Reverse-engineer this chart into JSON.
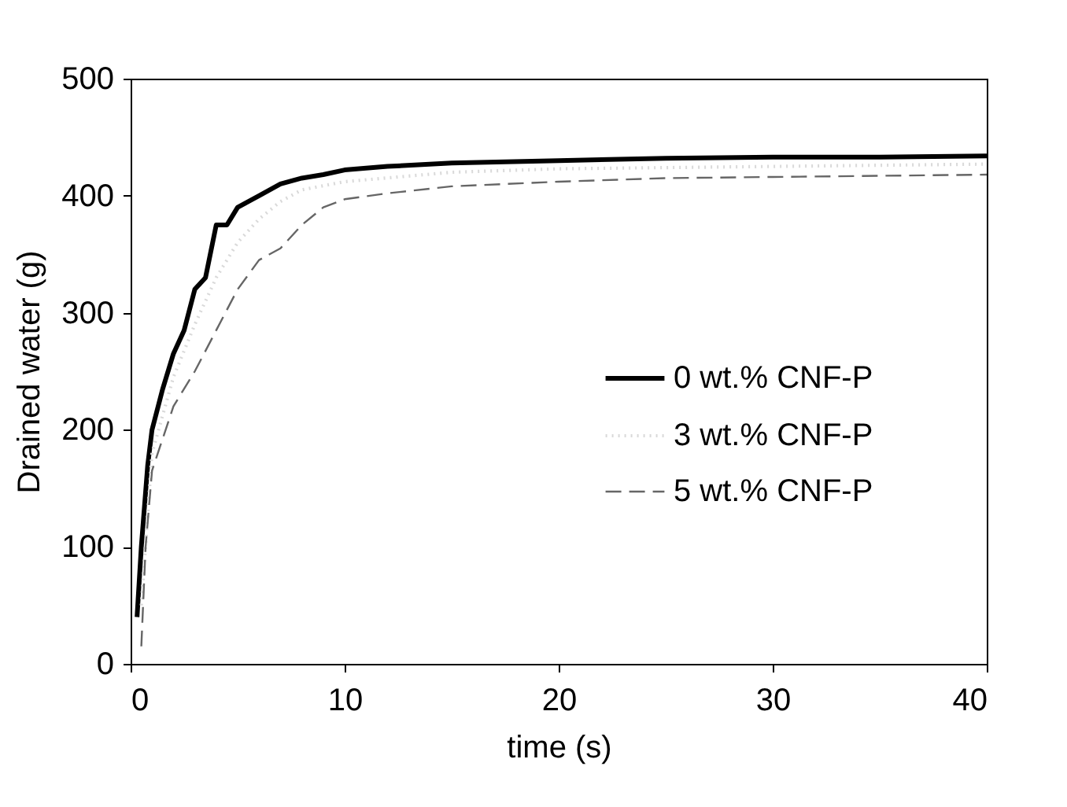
{
  "chart_data": {
    "type": "line",
    "xlabel": "time (s)",
    "ylabel": "Drained water (g)",
    "xlim": [
      0,
      40
    ],
    "xticks": [
      0,
      10,
      20,
      30,
      40
    ],
    "ylim": [
      0,
      500
    ],
    "yticks": [
      0,
      100,
      200,
      300,
      400,
      500
    ],
    "grid": false,
    "legend": "right",
    "marker": "none",
    "series": [
      {
        "name": "0 wt.% CNF-P",
        "color": "#000000",
        "line_style": "solid",
        "x": [
          0.3,
          0.5,
          0.8,
          1,
          1.5,
          2,
          2.5,
          3,
          3.5,
          4,
          4.5,
          5,
          6,
          7,
          8,
          9,
          10,
          12,
          15,
          20,
          25,
          30,
          35,
          40
        ],
        "values": [
          40,
          100,
          170,
          200,
          235,
          265,
          285,
          320,
          330,
          375,
          375,
          390,
          400,
          410,
          415,
          418,
          422,
          425,
          428,
          430,
          432,
          433,
          433,
          434
        ]
      },
      {
        "name": "3 wt.% CNF-P",
        "color": "#d9d9d9",
        "line_style": "dotted",
        "x": [
          0.5,
          1,
          2,
          3,
          4,
          5,
          6,
          7,
          8,
          10,
          15,
          20,
          30,
          40
        ],
        "values": [
          50,
          180,
          245,
          290,
          330,
          360,
          380,
          395,
          405,
          412,
          420,
          423,
          425,
          427
        ]
      },
      {
        "name": "5 wt.% CNF-P",
        "color": "#666666",
        "line_style": "dashed",
        "x": [
          0.5,
          0.7,
          1,
          2,
          3,
          4,
          5,
          6,
          7,
          8,
          9,
          10,
          12,
          15,
          20,
          25,
          30,
          40
        ],
        "values": [
          15,
          100,
          165,
          220,
          250,
          285,
          320,
          345,
          355,
          375,
          390,
          397,
          402,
          408,
          412,
          415,
          416,
          418
        ]
      }
    ]
  }
}
